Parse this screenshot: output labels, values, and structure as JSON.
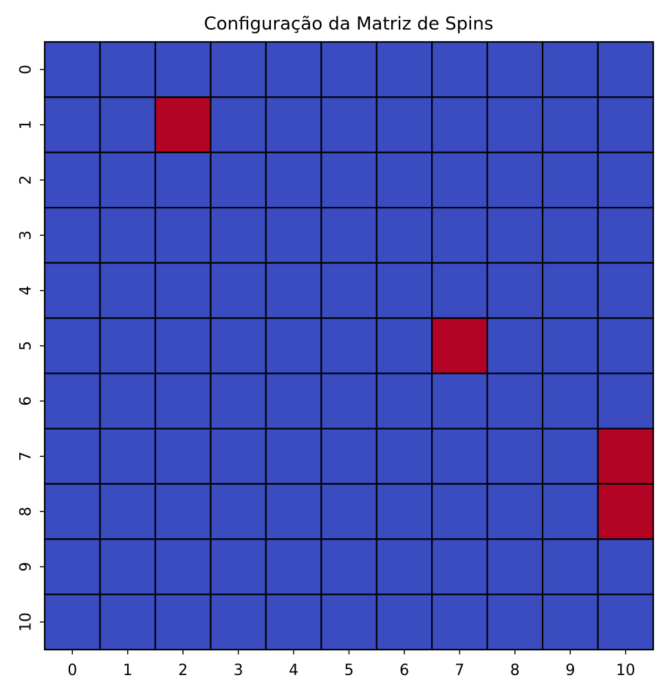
{
  "chart_data": {
    "type": "heatmap",
    "title": "Configuração da Matriz de Spins",
    "x_tick_labels": [
      "0",
      "1",
      "2",
      "3",
      "4",
      "5",
      "6",
      "7",
      "8",
      "9",
      "10"
    ],
    "y_tick_labels": [
      "0",
      "1",
      "2",
      "3",
      "4",
      "5",
      "6",
      "7",
      "8",
      "9",
      "10"
    ],
    "matrix": [
      [
        -1,
        -1,
        -1,
        -1,
        -1,
        -1,
        -1,
        -1,
        -1,
        -1,
        -1
      ],
      [
        -1,
        -1,
        1,
        -1,
        -1,
        -1,
        -1,
        -1,
        -1,
        -1,
        -1
      ],
      [
        -1,
        -1,
        -1,
        -1,
        -1,
        -1,
        -1,
        -1,
        -1,
        -1,
        -1
      ],
      [
        -1,
        -1,
        -1,
        -1,
        -1,
        -1,
        -1,
        -1,
        -1,
        -1,
        -1
      ],
      [
        -1,
        -1,
        -1,
        -1,
        -1,
        -1,
        -1,
        -1,
        -1,
        -1,
        -1
      ],
      [
        -1,
        -1,
        -1,
        -1,
        -1,
        -1,
        -1,
        1,
        -1,
        -1,
        -1
      ],
      [
        -1,
        -1,
        -1,
        -1,
        -1,
        -1,
        -1,
        -1,
        -1,
        -1,
        -1
      ],
      [
        -1,
        -1,
        -1,
        -1,
        -1,
        -1,
        -1,
        -1,
        -1,
        -1,
        1
      ],
      [
        -1,
        -1,
        -1,
        -1,
        -1,
        -1,
        -1,
        -1,
        -1,
        -1,
        1
      ],
      [
        -1,
        -1,
        -1,
        -1,
        -1,
        -1,
        -1,
        -1,
        -1,
        -1,
        -1
      ],
      [
        -1,
        -1,
        -1,
        -1,
        -1,
        -1,
        -1,
        -1,
        -1,
        -1,
        -1
      ]
    ],
    "colormap": "coolwarm",
    "value_colors": {
      "-1": "#3b4cc0",
      "1": "#b40426"
    },
    "cell_border_color": "#000000",
    "colorbar": false
  }
}
